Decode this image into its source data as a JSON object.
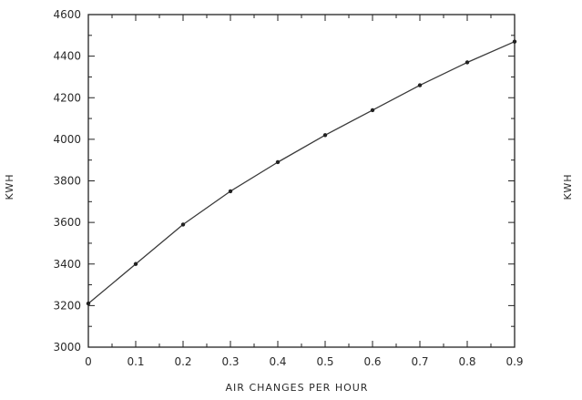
{
  "chart_data": {
    "type": "line",
    "xlabel": "AIR CHANGES PER HOUR",
    "ylabel_left": "KWH",
    "ylabel_right": "KWH",
    "x_ticks": [
      "0",
      "0.1",
      "0.2",
      "0.3",
      "0.4",
      "0.5",
      "0.6",
      "0.7",
      "0.8",
      "0.9"
    ],
    "y_ticks": [
      "3000",
      "3200",
      "3400",
      "3600",
      "3800",
      "4000",
      "4200",
      "4400",
      "4600"
    ],
    "xlim": [
      0,
      0.9
    ],
    "ylim": [
      3000,
      4600
    ],
    "grid": false,
    "series": [
      {
        "x": [
          0,
          0.1,
          0.2,
          0.3,
          0.4,
          0.5,
          0.6,
          0.7,
          0.8,
          0.9
        ],
        "y": [
          3210,
          3400,
          3590,
          3750,
          3890,
          4020,
          4140,
          4260,
          4370,
          4470
        ]
      }
    ],
    "colors": {
      "line": "#3a3a3a",
      "axis": "#222222"
    }
  }
}
